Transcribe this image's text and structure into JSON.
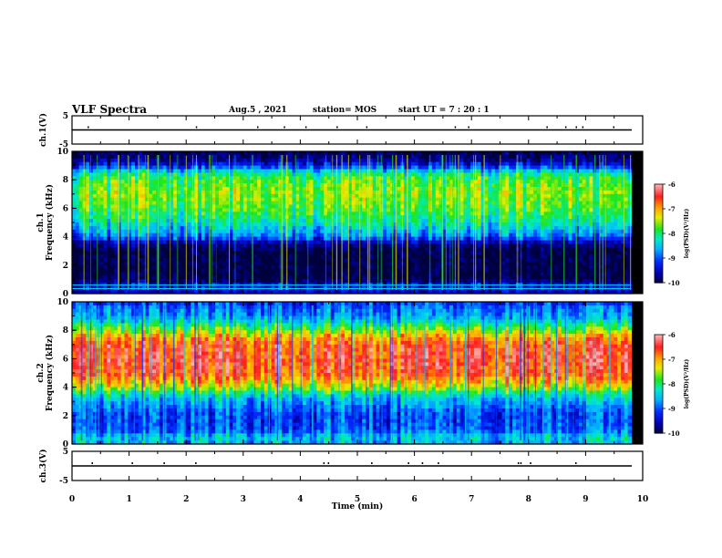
{
  "header": {
    "title": "VLF Spectra",
    "date": "Aug.5 , 2021",
    "station": "station= MOS",
    "start": "start UT = 7 : 20 : 1"
  },
  "colors": {
    "axis": "#000000",
    "dark_blue": "#00007a",
    "blue": "#0033ff",
    "cyan": "#00d8ff",
    "green": "#10e010",
    "yellow": "#f0f000",
    "red": "#ff2020",
    "pink": "#ff9a9a"
  },
  "chart_data": [
    {
      "type": "line",
      "panel": "ch1-waveform",
      "ylabel": "ch.1(V)",
      "ylim": [
        -5,
        5
      ],
      "yticks": [
        "5",
        "-5"
      ],
      "x": [
        0,
        10
      ],
      "values": [
        0,
        0
      ]
    },
    {
      "type": "heatmap",
      "panel": "ch1-spectrogram",
      "ylabel": "ch.1 Frequency (kHz)",
      "ylim": [
        0,
        10
      ],
      "yticks": [
        "0",
        "2",
        "4",
        "6",
        "8",
        "10"
      ],
      "xlim": [
        0,
        10
      ],
      "data_end_min": 9.8,
      "colorbar": {
        "label": "log(PSD)(V²/Hz)",
        "range": [
          -10,
          -6
        ],
        "ticks": [
          "-6",
          "-7",
          "-8",
          "-9",
          "-10"
        ]
      },
      "freq_profile_khz": [
        0,
        0.5,
        1,
        2,
        3,
        3.5,
        4,
        5,
        6,
        7,
        8,
        8.5,
        9,
        9.5,
        10
      ],
      "freq_profile_logpsd": [
        -9.6,
        -9.2,
        -10,
        -10,
        -10,
        -9.7,
        -8.9,
        -8.2,
        -7.8,
        -7.6,
        -7.8,
        -8.2,
        -9.3,
        -9.8,
        -9.9
      ]
    },
    {
      "type": "heatmap",
      "panel": "ch2-spectrogram",
      "ylabel": "ch.2 Frequency (kHz)",
      "ylim": [
        0,
        10
      ],
      "yticks": [
        "0",
        "2",
        "4",
        "6",
        "8",
        "10"
      ],
      "xlim": [
        0,
        10
      ],
      "data_end_min": 9.8,
      "colorbar": {
        "label": "log(PSD)(V²/Hz)",
        "range": [
          -10,
          -6
        ],
        "ticks": [
          "-6",
          "-7",
          "-8",
          "-9",
          "-10"
        ]
      },
      "freq_profile_khz": [
        0,
        0.5,
        1,
        2,
        3,
        3.5,
        4,
        5,
        6,
        7,
        7.5,
        8,
        8.5,
        9,
        9.5,
        10
      ],
      "freq_profile_logpsd": [
        -8.6,
        -8.4,
        -9.0,
        -9.1,
        -8.6,
        -8.2,
        -7.4,
        -6.6,
        -6.5,
        -6.6,
        -7.0,
        -7.6,
        -8.2,
        -8.7,
        -8.8,
        -9.2
      ]
    },
    {
      "type": "line",
      "panel": "ch3-waveform",
      "ylabel": "ch.3(V)",
      "ylim": [
        -5,
        5
      ],
      "yticks": [
        "5",
        "-5"
      ],
      "x": [
        0,
        10
      ],
      "values": [
        0,
        0
      ]
    }
  ],
  "x_axis": {
    "label": "Time (min)",
    "ticks": [
      "0",
      "1",
      "2",
      "3",
      "4",
      "5",
      "6",
      "7",
      "8",
      "9",
      "10"
    ]
  }
}
